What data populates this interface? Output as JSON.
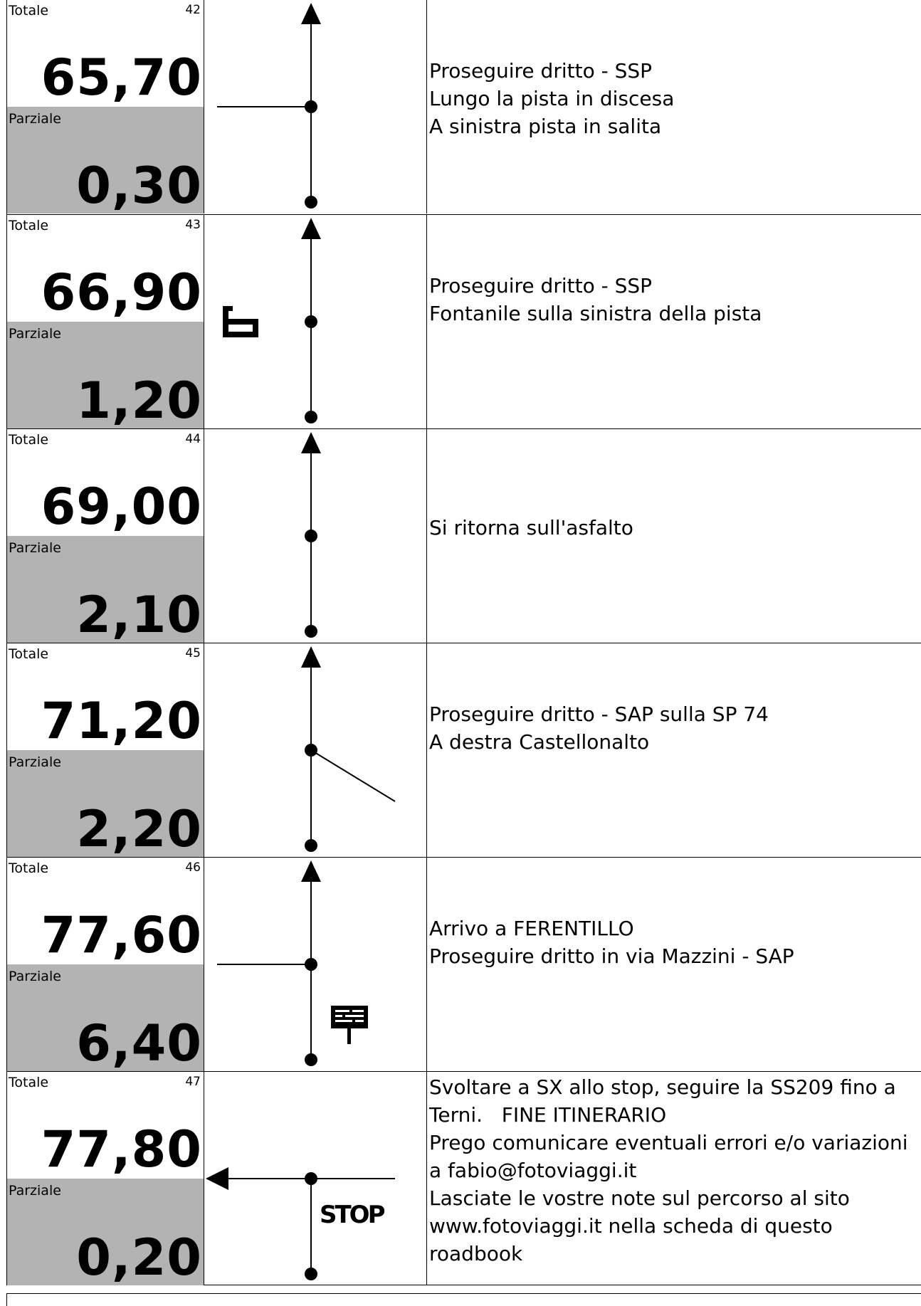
{
  "labels": {
    "totale": "Totale",
    "parziale": "Parziale"
  },
  "rows": [
    {
      "index": "42",
      "totale": "65,70",
      "parziale": "0,30",
      "lines": [
        "Proseguire dritto - SSP",
        "Lungo la pista in discesa",
        "A sinistra pista in salita"
      ],
      "diagram": "left-branch-horizontal",
      "icon": ""
    },
    {
      "index": "43",
      "totale": "66,90",
      "parziale": "1,20",
      "lines": [
        "Proseguire dritto - SSP",
        "Fontanile sulla sinistra della pista"
      ],
      "diagram": "straight",
      "icon": "fountain-icon"
    },
    {
      "index": "44",
      "totale": "69,00",
      "parziale": "2,10",
      "lines": [
        "Si ritorna sull'asfalto"
      ],
      "diagram": "straight",
      "icon": ""
    },
    {
      "index": "45",
      "totale": "71,20",
      "parziale": "2,20",
      "lines": [
        "Proseguire dritto - SAP sulla SP 74",
        "A destra Castellonalto"
      ],
      "diagram": "right-branch-diagonal",
      "icon": ""
    },
    {
      "index": "46",
      "totale": "77,60",
      "parziale": "6,40",
      "lines": [
        "Arrivo a FERENTILLO",
        "Proseguire dritto in via Mazzini - SAP"
      ],
      "diagram": "left-branch-horizontal",
      "icon": "town-sign-icon"
    },
    {
      "index": "47",
      "totale": "77,80",
      "parziale": "0,20",
      "lines": [
        "Svoltare a SX allo stop, seguire la SS209 fino a",
        "Terni.   FINE ITINERARIO",
        "Prego comunicare eventuali errori e/o variazioni",
        "a fabio@fotoviaggi.it",
        "Lasciate le vostre note sul percorso al sito",
        "www.fotoviaggi.it nella scheda di questo",
        "roadbook"
      ],
      "diagram": "turn-left-stop",
      "icon": "stop-sign-icon"
    }
  ]
}
